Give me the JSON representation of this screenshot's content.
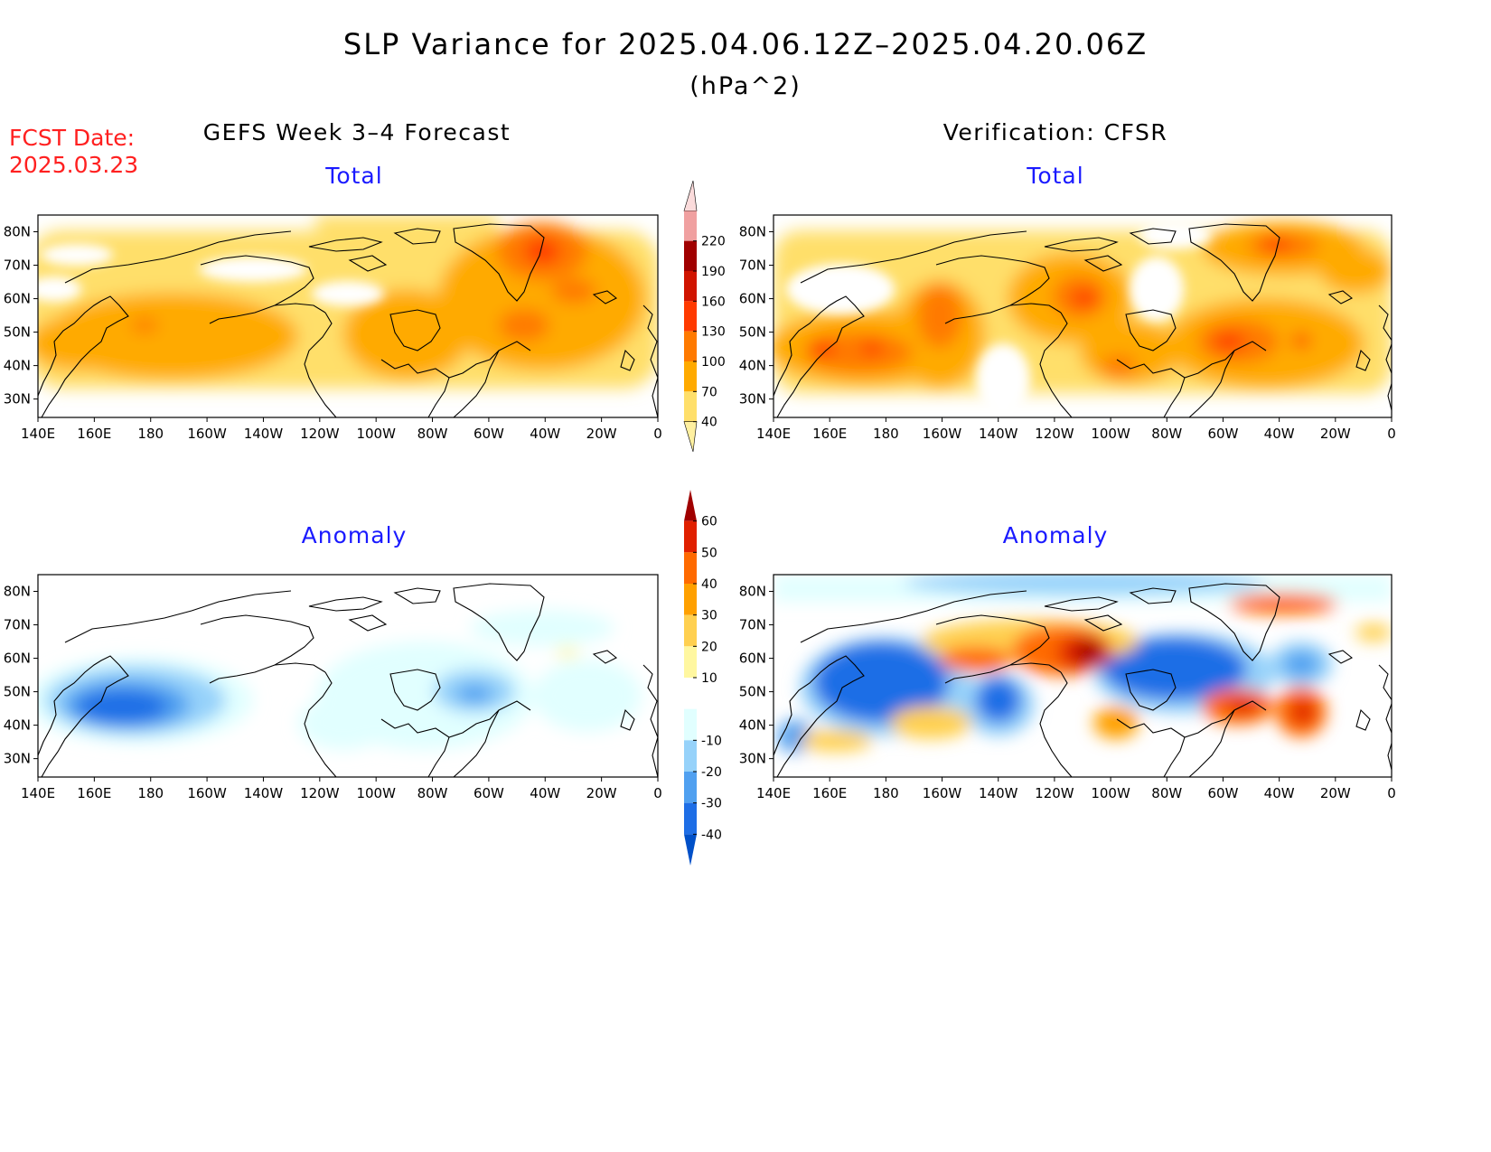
{
  "header": {
    "title": "SLP Variance for 2025.04.06.12Z–2025.04.20.06Z",
    "units": "(hPa^2)",
    "fcst_label": "FCST Date:",
    "fcst_date": "2025.03.23"
  },
  "columns": {
    "left": "GEFS Week 3–4 Forecast",
    "right": "Verification: CFSR"
  },
  "panels": {
    "top_left": {
      "subtitle": "Total"
    },
    "top_right": {
      "subtitle": "Total"
    },
    "bottom_left": {
      "subtitle": "Anomaly"
    },
    "bottom_right": {
      "subtitle": "Anomaly"
    }
  },
  "axes": {
    "lon_labels": [
      "140E",
      "160E",
      "180",
      "160W",
      "140W",
      "120W",
      "100W",
      "80W",
      "60W",
      "40W",
      "20W",
      "0"
    ],
    "lat_labels": [
      "30N",
      "40N",
      "50N",
      "60N",
      "70N",
      "80N"
    ]
  },
  "colorbar_total": {
    "levels": [
      "40",
      "70",
      "100",
      "130",
      "160",
      "190",
      "220"
    ],
    "colors": [
      "#fff0a0",
      "#ffdf6a",
      "#ffaa00",
      "#ff7a00",
      "#ff3a00",
      "#d01400",
      "#a00000",
      "#f0a0a0",
      "#fbdbdb"
    ]
  },
  "colorbar_anomaly": {
    "levels": [
      "-40",
      "-30",
      "-20",
      "-10",
      "10",
      "20",
      "30",
      "40",
      "50",
      "60"
    ],
    "colors": [
      "#0050c8",
      "#1e6ee6",
      "#50a0f0",
      "#96d2fa",
      "#e1ffff",
      "#ffffff",
      "#fff7a0",
      "#ffd050",
      "#ffa000",
      "#ff6a00",
      "#e02000",
      "#a00000"
    ]
  }
}
